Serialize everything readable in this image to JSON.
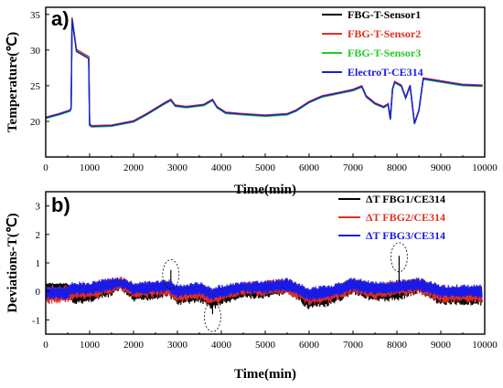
{
  "chart_data": [
    {
      "panel_label": "a)",
      "type": "line",
      "xlabel": "Time(min)",
      "ylabel": "Temperature(℃)",
      "xlim": [
        0,
        10000
      ],
      "ylim": [
        15,
        36
      ],
      "xticks": [
        0,
        1000,
        2000,
        3000,
        4000,
        5000,
        6000,
        7000,
        8000,
        9000,
        10000
      ],
      "yticks": [
        20,
        25,
        30,
        35
      ],
      "legend_position": "top-right",
      "series": [
        {
          "name": "FBG-T-Sensor1",
          "color": "#000000",
          "x": [
            0,
            300,
            550,
            580,
            600,
            700,
            980,
            1000,
            1050,
            1500,
            2000,
            2300,
            2700,
            2850,
            2950,
            3200,
            3600,
            3800,
            3900,
            4100,
            4500,
            5000,
            5500,
            5700,
            6000,
            6300,
            6700,
            7000,
            7200,
            7300,
            7500,
            7700,
            7800,
            7850,
            7900,
            7950,
            8100,
            8200,
            8300,
            8400,
            8500,
            8600,
            9000,
            9500,
            9950
          ],
          "y": [
            20.5,
            21.0,
            21.5,
            21.8,
            34.5,
            30.0,
            29.0,
            19.5,
            19.3,
            19.4,
            20.0,
            21.0,
            22.5,
            23.0,
            22.2,
            22.0,
            22.3,
            23.0,
            22.0,
            21.2,
            21.0,
            20.8,
            21.0,
            21.5,
            22.7,
            23.5,
            24.0,
            24.4,
            24.9,
            23.5,
            22.5,
            22.0,
            22.4,
            20.3,
            24.5,
            25.5,
            25.0,
            23.3,
            25.0,
            19.7,
            21.5,
            26.0,
            25.6,
            25.1,
            25.0
          ]
        },
        {
          "name": "FBG-T-Sensor2",
          "color": "#e03020",
          "x": [
            0,
            300,
            550,
            580,
            600,
            700,
            980,
            1000,
            1050,
            1500,
            2000,
            2300,
            2700,
            2850,
            2950,
            3200,
            3600,
            3800,
            3900,
            4100,
            4500,
            5000,
            5500,
            5700,
            6000,
            6300,
            6700,
            7000,
            7200,
            7300,
            7500,
            7700,
            7800,
            7850,
            7900,
            7950,
            8100,
            8200,
            8300,
            8400,
            8500,
            8600,
            9000,
            9500,
            9950
          ],
          "y": [
            20.6,
            21.1,
            21.6,
            21.9,
            34.6,
            30.1,
            29.1,
            19.6,
            19.4,
            19.5,
            20.1,
            21.1,
            22.6,
            23.1,
            22.3,
            22.1,
            22.4,
            23.1,
            22.1,
            21.3,
            21.1,
            20.9,
            21.1,
            21.6,
            22.8,
            23.6,
            24.1,
            24.5,
            25.0,
            23.6,
            22.6,
            22.1,
            22.5,
            20.4,
            24.6,
            25.6,
            25.1,
            23.4,
            25.1,
            19.8,
            21.6,
            26.1,
            25.7,
            25.2,
            25.1
          ]
        },
        {
          "name": "FBG-T-Sensor3",
          "color": "#22cc22",
          "x": [
            0,
            300,
            550,
            580,
            600,
            700,
            980,
            1000,
            1050,
            1500,
            2000,
            2300,
            2700,
            2850,
            2950,
            3200,
            3600,
            3800,
            3900,
            4100,
            4500,
            5000,
            5500,
            5700,
            6000,
            6300,
            6700,
            7000,
            7200,
            7300,
            7500,
            7700,
            7800,
            7850,
            7900,
            7950,
            8100,
            8200,
            8300,
            8400,
            8500,
            8600,
            9000,
            9500,
            9950
          ],
          "y": [
            20.4,
            20.9,
            21.4,
            21.7,
            34.4,
            29.9,
            28.9,
            19.4,
            19.2,
            19.3,
            19.9,
            20.9,
            22.4,
            22.9,
            22.1,
            21.9,
            22.2,
            22.9,
            21.9,
            21.1,
            20.9,
            20.7,
            20.9,
            21.4,
            22.6,
            23.4,
            23.9,
            24.3,
            24.8,
            23.4,
            22.4,
            21.9,
            22.3,
            20.2,
            24.4,
            25.4,
            24.9,
            23.2,
            24.9,
            19.6,
            21.4,
            25.9,
            25.5,
            25.0,
            24.9
          ]
        },
        {
          "name": "ElectroT-CE314",
          "color": "#1a1ae6",
          "x": [
            0,
            300,
            550,
            580,
            600,
            700,
            980,
            1000,
            1050,
            1500,
            2000,
            2300,
            2700,
            2850,
            2950,
            3200,
            3600,
            3800,
            3900,
            4100,
            4500,
            5000,
            5500,
            5700,
            6000,
            6300,
            6700,
            7000,
            7200,
            7300,
            7500,
            7700,
            7800,
            7850,
            7900,
            7950,
            8100,
            8200,
            8300,
            8400,
            8500,
            8600,
            9000,
            9500,
            9950
          ],
          "y": [
            20.5,
            21.0,
            21.5,
            21.8,
            34.3,
            29.8,
            28.8,
            19.5,
            19.3,
            19.4,
            20.0,
            21.0,
            22.5,
            23.0,
            22.2,
            22.0,
            22.3,
            23.0,
            22.0,
            21.2,
            21.0,
            20.8,
            21.0,
            21.5,
            22.7,
            23.5,
            24.0,
            24.4,
            24.9,
            23.5,
            22.5,
            22.0,
            22.4,
            20.3,
            24.5,
            25.5,
            25.0,
            23.3,
            25.0,
            19.7,
            21.5,
            26.0,
            25.6,
            25.1,
            25.0
          ]
        }
      ]
    },
    {
      "panel_label": "b)",
      "type": "line",
      "xlabel": "Time(min)",
      "ylabel": "Deviations-T(℃)",
      "xlim": [
        0,
        10000
      ],
      "ylim": [
        -1.5,
        3.5
      ],
      "xticks": [
        0,
        1000,
        2000,
        3000,
        4000,
        5000,
        6000,
        7000,
        8000,
        9000,
        10000
      ],
      "yticks": [
        -1,
        0,
        1,
        2,
        3
      ],
      "legend_position": "top-right",
      "series": [
        {
          "name": "ΔT FBG1/CE314",
          "color": "#000000",
          "x": [
            0,
            500,
            600,
            1000,
            1500,
            1700,
            2000,
            2500,
            2800,
            3000,
            3500,
            3800,
            4000,
            4500,
            5000,
            5500,
            6000,
            6500,
            7000,
            7500,
            8000,
            8500,
            9000,
            9500,
            9950
          ],
          "center": [
            0.2,
            0.2,
            -0.2,
            -0.1,
            0.1,
            0.3,
            -0.1,
            0.0,
            0.1,
            -0.2,
            -0.1,
            -0.3,
            -0.2,
            0.0,
            0.0,
            0.2,
            -0.3,
            -0.2,
            0.2,
            -0.1,
            0.0,
            0.2,
            -0.2,
            -0.2,
            -0.2
          ],
          "spread": [
            0.1,
            0.1,
            0.3,
            0.3,
            0.3,
            0.25,
            0.3,
            0.3,
            0.3,
            0.3,
            0.3,
            0.35,
            0.3,
            0.25,
            0.3,
            0.3,
            0.35,
            0.35,
            0.3,
            0.3,
            0.35,
            0.3,
            0.3,
            0.3,
            0.3
          ],
          "spikes": [
            {
              "x": 2850,
              "y": 0.75
            },
            {
              "x": 3800,
              "y": -0.8
            },
            {
              "x": 8050,
              "y": 1.25
            }
          ]
        },
        {
          "name": "ΔT FBG2/CE314",
          "color": "#e03020",
          "x": [
            0,
            500,
            600,
            1000,
            1500,
            1700,
            2000,
            2500,
            2800,
            3000,
            3500,
            3800,
            4000,
            4500,
            5000,
            5500,
            6000,
            6500,
            7000,
            7500,
            8000,
            8500,
            9000,
            9500,
            9950
          ],
          "center": [
            -0.1,
            -0.1,
            0.0,
            0.0,
            0.2,
            0.3,
            0.0,
            0.1,
            0.1,
            -0.1,
            0.0,
            -0.2,
            -0.1,
            0.1,
            0.1,
            0.2,
            -0.2,
            -0.1,
            0.2,
            0.0,
            0.1,
            0.2,
            -0.1,
            -0.1,
            -0.1
          ],
          "spread": [
            0.35,
            0.35,
            0.3,
            0.3,
            0.3,
            0.25,
            0.3,
            0.3,
            0.3,
            0.3,
            0.3,
            0.3,
            0.3,
            0.25,
            0.3,
            0.3,
            0.3,
            0.3,
            0.3,
            0.3,
            0.3,
            0.3,
            0.3,
            0.3,
            0.3
          ]
        },
        {
          "name": "ΔT FBG3/CE314",
          "color": "#1a1ae6",
          "x": [
            0,
            500,
            600,
            1000,
            1500,
            1700,
            2000,
            2500,
            2800,
            3000,
            3500,
            3800,
            4000,
            4500,
            5000,
            5500,
            6000,
            6500,
            7000,
            7500,
            8000,
            8500,
            9000,
            9500,
            9950
          ],
          "center": [
            -0.05,
            -0.05,
            0.1,
            0.1,
            0.25,
            0.3,
            0.1,
            0.15,
            0.2,
            0.0,
            0.1,
            -0.1,
            0.0,
            0.15,
            0.15,
            0.25,
            -0.1,
            0.0,
            0.25,
            0.1,
            0.15,
            0.25,
            0.0,
            0.0,
            0.0
          ],
          "spread": [
            0.25,
            0.25,
            0.25,
            0.25,
            0.25,
            0.2,
            0.25,
            0.25,
            0.25,
            0.25,
            0.25,
            0.25,
            0.25,
            0.2,
            0.25,
            0.25,
            0.25,
            0.25,
            0.25,
            0.25,
            0.25,
            0.25,
            0.25,
            0.25,
            0.25
          ]
        }
      ],
      "annotations": [
        {
          "shape": "dashed-ellipse",
          "x": 2850,
          "y": 0.6
        },
        {
          "shape": "dashed-ellipse",
          "x": 3800,
          "y": -0.9
        },
        {
          "shape": "dashed-ellipse",
          "x": 8050,
          "y": 1.2
        }
      ]
    }
  ]
}
